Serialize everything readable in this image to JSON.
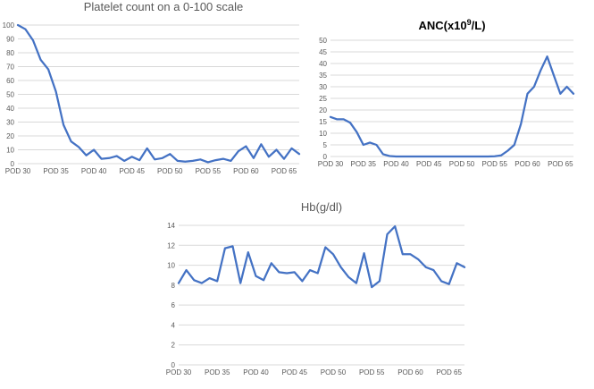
{
  "chart_data": [
    {
      "type": "line",
      "title": "Platelet count on a 0-100 scale",
      "xlabel": "",
      "ylabel": "",
      "ylim": [
        0,
        100
      ],
      "yticks": [
        0,
        10,
        20,
        30,
        40,
        50,
        60,
        70,
        80,
        90,
        100
      ],
      "xticks": [
        "POD 30",
        "POD 35",
        "POD 40",
        "POD 45",
        "POD 50",
        "POD 55",
        "POD 60",
        "POD 65"
      ],
      "x": [
        30,
        31,
        32,
        33,
        34,
        35,
        36,
        37,
        38,
        39,
        40,
        41,
        42,
        43,
        44,
        45,
        46,
        47,
        48,
        49,
        50,
        51,
        52,
        53,
        54,
        55,
        56,
        57,
        58,
        59,
        60,
        61,
        62,
        63,
        64,
        65,
        66,
        67
      ],
      "series": [
        {
          "name": "",
          "color": "#4472c4",
          "values": [
            100,
            97,
            89,
            75,
            68,
            52,
            28,
            16,
            12,
            6,
            10,
            3.5,
            4,
            5.5,
            2,
            5,
            2.5,
            11,
            3,
            4,
            7,
            2,
            1.5,
            2,
            3,
            1,
            2.5,
            3.5,
            2,
            9,
            12.5,
            4,
            14,
            5,
            10,
            3.5,
            11,
            7
          ]
        }
      ],
      "grid": true,
      "legend": "none"
    },
    {
      "type": "line",
      "title": "ANC(x10",
      "title_sup": "9",
      "title_suffix": "/L)",
      "xlabel": "",
      "ylabel": "",
      "ylim": [
        0,
        50
      ],
      "yticks": [
        0,
        5,
        10,
        15,
        20,
        25,
        30,
        35,
        40,
        45,
        50
      ],
      "xticks": [
        "POD 30",
        "POD 35",
        "POD 40",
        "POD 45",
        "POD 50",
        "POD 55",
        "POD 60",
        "POD 65"
      ],
      "x": [
        30,
        31,
        32,
        33,
        34,
        35,
        36,
        37,
        38,
        39,
        40,
        41,
        42,
        43,
        44,
        45,
        46,
        47,
        48,
        49,
        50,
        51,
        52,
        53,
        54,
        55,
        56,
        57,
        58,
        59,
        60,
        61,
        62,
        63,
        64,
        65,
        66,
        67
      ],
      "series": [
        {
          "name": "",
          "color": "#4472c4",
          "values": [
            17,
            16,
            16,
            14.5,
            10.5,
            5,
            6,
            5,
            1,
            0.2,
            0,
            0,
            0,
            0,
            0,
            0,
            0,
            0,
            0,
            0,
            0,
            0,
            0,
            0,
            0,
            0.1,
            0.5,
            2.5,
            5,
            14,
            27,
            30,
            37,
            43,
            35,
            27,
            30,
            27
          ]
        }
      ],
      "grid": true,
      "legend": "none"
    },
    {
      "type": "line",
      "title": "Hb(g/dl)",
      "xlabel": "",
      "ylabel": "",
      "ylim": [
        0,
        14
      ],
      "yticks": [
        0,
        2,
        4,
        6,
        8,
        10,
        12,
        14
      ],
      "xticks": [
        "POD 30",
        "POD 35",
        "POD 40",
        "POD 45",
        "POD 50",
        "POD 55",
        "POD 60",
        "POD 65"
      ],
      "x": [
        30,
        31,
        32,
        33,
        34,
        35,
        36,
        37,
        38,
        39,
        40,
        41,
        42,
        43,
        44,
        45,
        46,
        47,
        48,
        49,
        50,
        51,
        52,
        53,
        54,
        55,
        56,
        57,
        58,
        59,
        60,
        61,
        62,
        63,
        64,
        65,
        66,
        67
      ],
      "series": [
        {
          "name": "",
          "color": "#4472c4",
          "values": [
            8.2,
            9.5,
            8.5,
            8.2,
            8.7,
            8.4,
            11.7,
            11.9,
            8.2,
            11.3,
            8.9,
            8.5,
            10.2,
            9.3,
            9.2,
            9.3,
            8.4,
            9.5,
            9.2,
            11.8,
            11.1,
            9.8,
            8.8,
            8.2,
            11.2,
            7.8,
            8.4,
            13.1,
            13.9,
            11.1,
            11.1,
            10.6,
            9.8,
            9.5,
            8.4,
            8.1,
            10.2,
            9.8
          ]
        }
      ],
      "grid": true,
      "legend": "none"
    }
  ]
}
